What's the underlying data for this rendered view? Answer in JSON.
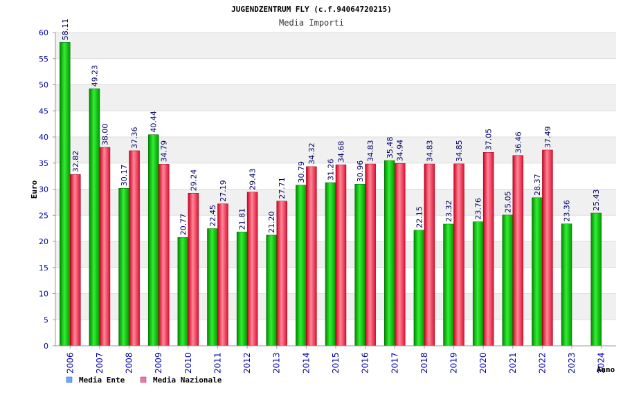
{
  "colors": {
    "ente": "#00aa00",
    "ente_light": "#66ff66",
    "nazionale": "#dd1133",
    "nazionale_light": "#ff99aa",
    "tick_label": "#0000aa",
    "legend_ente": "#66aaff",
    "legend_nazionale": "#ee77aa",
    "band": "#f0f0f0",
    "grid": "#dddddd"
  },
  "chart_data": {
    "type": "bar",
    "title": "JUGENDZENTRUM FLY (c.f.94064720215)",
    "subtitle": "Media Importi",
    "xlabel": "Anno",
    "ylabel": "Euro",
    "ylim": [
      0,
      60
    ],
    "ytick_step": 5,
    "grid": true,
    "legend_position": "bottom-left",
    "categories": [
      "2006",
      "2007",
      "2008",
      "2009",
      "2010",
      "2011",
      "2012",
      "2013",
      "2014",
      "2015",
      "2016",
      "2017",
      "2018",
      "2019",
      "2020",
      "2021",
      "2022",
      "2023",
      "2024"
    ],
    "series": [
      {
        "name": "Media Ente",
        "values": [
          58.11,
          49.23,
          30.17,
          40.44,
          20.77,
          22.45,
          21.81,
          21.2,
          30.79,
          31.26,
          30.96,
          35.48,
          22.15,
          23.32,
          23.76,
          25.05,
          28.37,
          23.36,
          25.43
        ]
      },
      {
        "name": "Media Nazionale",
        "values": [
          32.82,
          38.0,
          37.36,
          34.79,
          29.24,
          27.19,
          29.43,
          27.71,
          34.32,
          34.68,
          34.83,
          34.94,
          34.83,
          34.85,
          37.05,
          36.46,
          37.49,
          null,
          null
        ]
      }
    ]
  }
}
